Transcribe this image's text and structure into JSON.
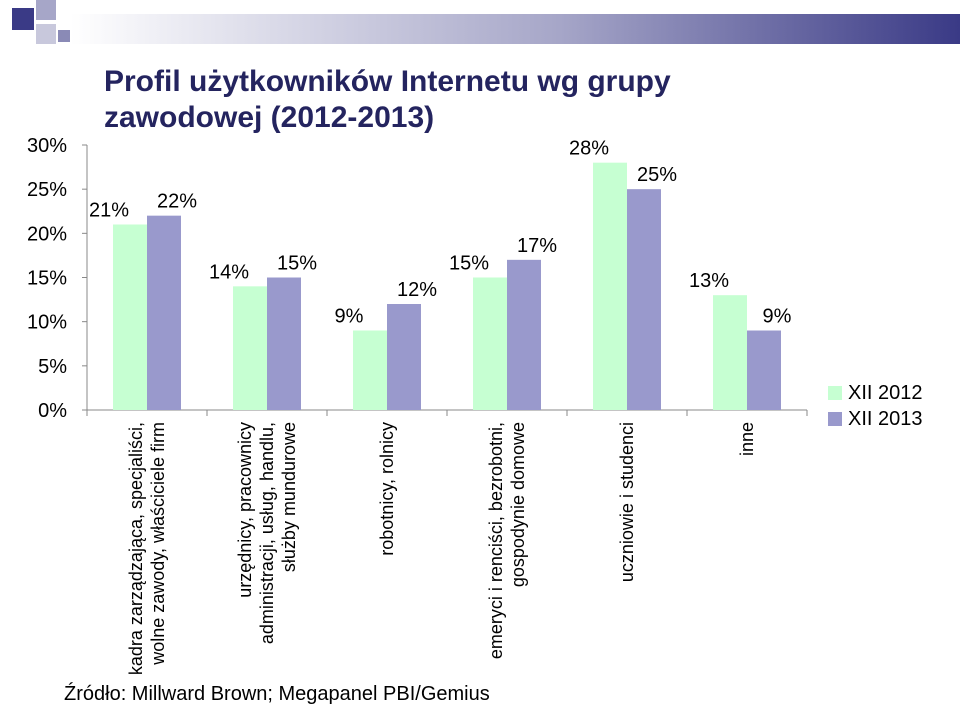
{
  "title": "Profil użytkowników Internetu wg grupy zawodowej (2012-2013)",
  "source": "Źródło: Millward Brown; Megapanel PBI/Gemius",
  "colors": {
    "xii2012": "#c6ffd2",
    "xii2013": "#9999cc",
    "title": "#24245f"
  },
  "chart_data": {
    "type": "bar",
    "title": "Profil użytkowników Internetu wg grupy zawodowej (2012-2013)",
    "categories": [
      [
        "kadra zarządzająca, specjaliści,",
        "wolne zawody, właściciele firm"
      ],
      [
        "urzędnicy, pracownicy",
        "administracji, usług, handlu,",
        "służby mundurowe"
      ],
      [
        "robotnicy, rolnicy"
      ],
      [
        "emeryci i renciści, bezrobotni,",
        "gospodynie domowe"
      ],
      [
        "uczniowie i studenci"
      ],
      [
        "inne"
      ]
    ],
    "series": [
      {
        "name": "XII 2012",
        "values": [
          21,
          14,
          9,
          15,
          28,
          13
        ],
        "labels": [
          "21%",
          "14%",
          "9%",
          "15%",
          "28%",
          "13%"
        ]
      },
      {
        "name": "XII 2013",
        "values": [
          22,
          15,
          12,
          17,
          25,
          9
        ],
        "labels": [
          "22%",
          "15%",
          "12%",
          "17%",
          "25%",
          "9%"
        ]
      }
    ],
    "yticks": [
      "0%",
      "5%",
      "10%",
      "15%",
      "20%",
      "25%",
      "30%"
    ],
    "ylim": [
      0,
      30
    ],
    "legend": "right",
    "grid": false
  }
}
